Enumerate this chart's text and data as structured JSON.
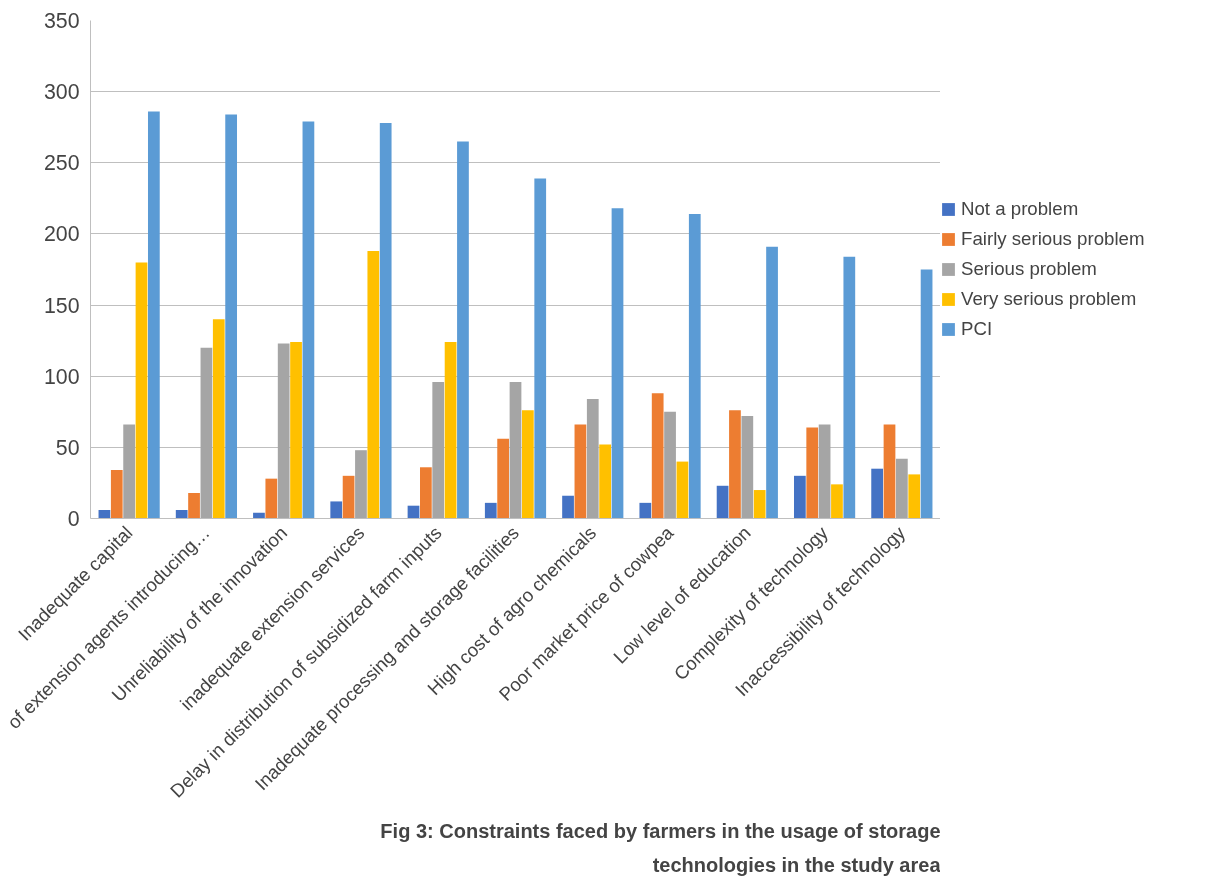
{
  "chart_data": {
    "type": "bar",
    "title": "Fig 3: Constraints faced by farmers in the usage of storage\ntechnologies in the study area",
    "categories": [
      "Inadequate capital",
      "of extension agents introducing…",
      "Unreliability of the innovation",
      "inadequate extension services",
      "Delay in distribution of subsidized farm inputs",
      "Inadequate processing and storage facilities",
      "High cost of agro chemicals",
      "Poor market price of cowpea",
      "Low level of education",
      "Complexity of technology",
      "Inaccessibility of technology"
    ],
    "series": [
      {
        "name": "Not a problem",
        "color": "#4472c4",
        "values": [
          6,
          6,
          4,
          12,
          9,
          11,
          16,
          11,
          23,
          30,
          35
        ]
      },
      {
        "name": "Fairly serious problem",
        "color": "#ed7d31",
        "values": [
          34,
          18,
          28,
          30,
          36,
          56,
          66,
          88,
          76,
          64,
          66
        ]
      },
      {
        "name": "Serious problem",
        "color": "#a5a5a5",
        "values": [
          66,
          120,
          123,
          48,
          96,
          96,
          84,
          75,
          72,
          66,
          42
        ]
      },
      {
        "name": "Very serious problem",
        "color": "#ffc000",
        "values": [
          180,
          140,
          124,
          188,
          124,
          76,
          52,
          40,
          20,
          24,
          31
        ]
      },
      {
        "name": "PCI",
        "color": "#5b9bd5",
        "values": [
          286,
          284,
          279,
          278,
          265,
          239,
          218,
          214,
          191,
          184,
          175
        ]
      }
    ],
    "ylim": [
      0,
      350
    ],
    "yticks": [
      0,
      50,
      100,
      150,
      200,
      250,
      300,
      350
    ],
    "grid": "y",
    "legend": "right"
  }
}
